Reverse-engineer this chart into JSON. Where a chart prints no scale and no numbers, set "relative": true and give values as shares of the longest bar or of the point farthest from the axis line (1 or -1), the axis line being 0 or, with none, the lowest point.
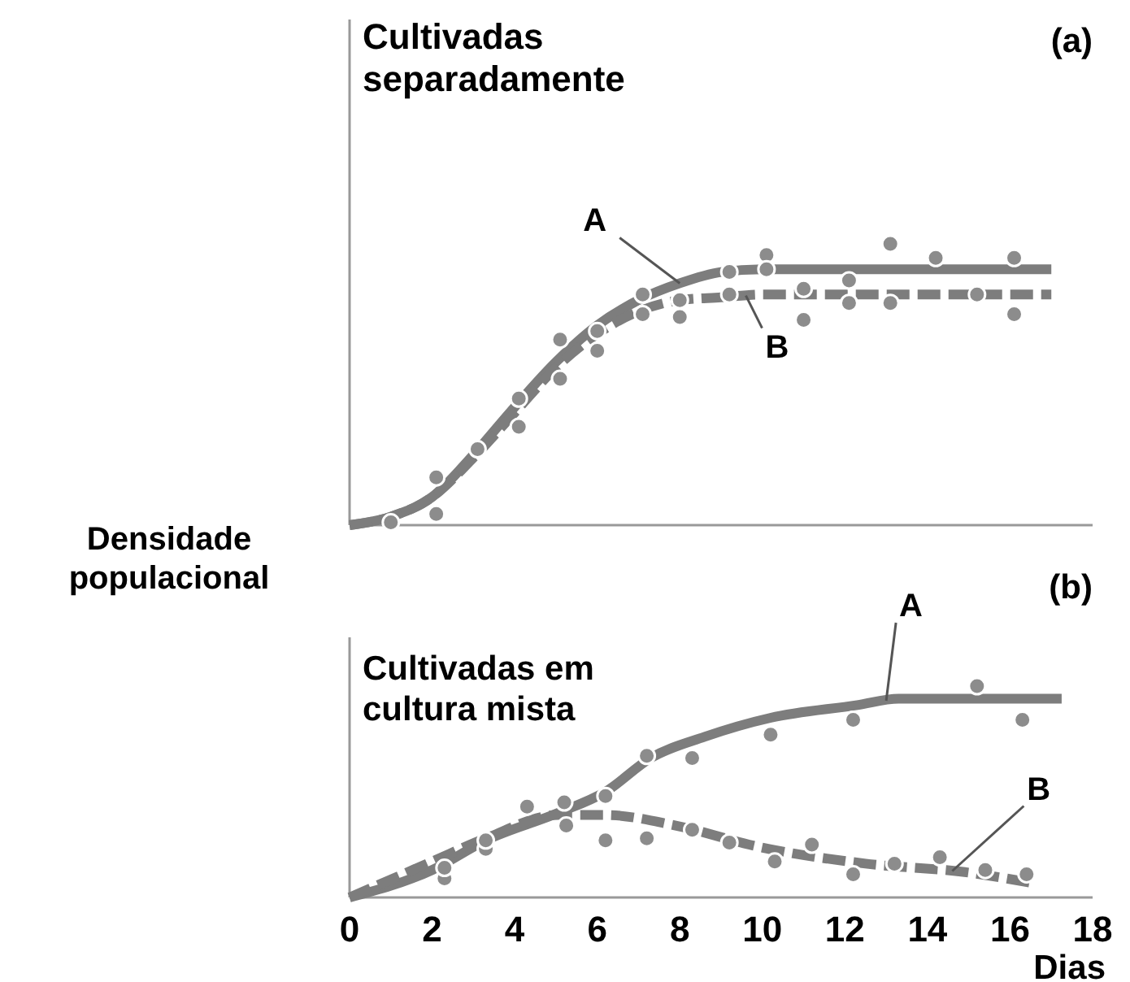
{
  "chart_data": [
    {
      "type": "line",
      "title": "Cultivadas separadamente",
      "ylabel": "Densidade populacional",
      "annotations": [
        "(a)"
      ],
      "relative": true,
      "xlim": [
        0,
        18
      ],
      "tick_labels": false,
      "series": [
        {
          "name": "A",
          "color": "#7d7d7d",
          "line_style": "solid",
          "x": [
            0,
            1,
            2,
            3,
            4,
            5,
            6,
            7,
            8,
            9,
            10,
            12,
            14,
            17
          ],
          "values": [
            0,
            0.03,
            0.1,
            0.25,
            0.42,
            0.58,
            0.71,
            0.8,
            0.86,
            0.9,
            0.91,
            0.91,
            0.91,
            0.91
          ]
        },
        {
          "name": "B",
          "color": "#7d7d7d",
          "line_style": "dashed",
          "x": [
            0,
            1,
            2,
            3,
            4,
            5,
            6,
            7,
            8,
            9,
            10,
            12,
            14,
            17
          ],
          "values": [
            0,
            0.03,
            0.1,
            0.24,
            0.4,
            0.56,
            0.68,
            0.76,
            0.8,
            0.81,
            0.82,
            0.82,
            0.82,
            0.82
          ]
        },
        {
          "type": "scatter",
          "color": "#8c8c8c",
          "marker": "circle",
          "x": [
            1,
            2.1,
            2.1,
            3.1,
            4.1,
            4.1,
            5.1,
            5.1,
            6,
            6,
            7.1,
            7.1,
            8,
            8,
            9.2,
            9.2,
            10.1,
            10.1,
            11,
            11,
            12.1,
            12.1,
            13.1,
            13.1,
            14.2,
            15.2,
            16.1,
            16.1
          ],
          "values": [
            0.01,
            0.17,
            0.04,
            0.27,
            0.45,
            0.35,
            0.66,
            0.52,
            0.62,
            0.69,
            0.75,
            0.82,
            0.8,
            0.74,
            0.9,
            0.82,
            0.96,
            0.91,
            0.84,
            0.73,
            0.87,
            0.79,
            1,
            0.79,
            0.95,
            0.82,
            0.95,
            0.75
          ]
        }
      ]
    },
    {
      "type": "line",
      "title": "Cultivadas em cultura mista",
      "xlabel": "Dias",
      "annotations": [
        "(b)"
      ],
      "relative": true,
      "xlim": [
        0,
        18
      ],
      "xticks": [
        0,
        2,
        4,
        6,
        8,
        10,
        12,
        14,
        16,
        18
      ],
      "tick_labels": "x",
      "series": [
        {
          "name": "A",
          "color": "#7d7d7d",
          "line_style": "solid",
          "x": [
            0,
            2,
            3.3,
            5.05,
            6.2,
            7.3,
            8.6,
            10.2,
            12.3,
            13.3,
            17.25
          ],
          "values": [
            0,
            0.13,
            0.27,
            0.4,
            0.5,
            0.66,
            0.76,
            0.85,
            0.91,
            0.94,
            0.94
          ]
        },
        {
          "name": "B",
          "color": "#7d7d7d",
          "line_style": "dashed",
          "x": [
            0,
            2,
            3.3,
            5.05,
            6.2,
            7.9,
            9.9,
            12.5,
            14.9,
            16.5
          ],
          "values": [
            0,
            0.17,
            0.28,
            0.39,
            0.39,
            0.34,
            0.24,
            0.16,
            0.12,
            0.07
          ]
        },
        {
          "type": "scatter",
          "color": "#8c8c8c",
          "marker": "circle",
          "x": [
            2.3,
            2.3,
            3.3,
            3.3,
            4.3,
            5.2,
            5.25,
            6.2,
            6.2,
            7.2,
            7.2,
            8.3,
            8.3,
            9.2,
            10.2,
            10.3,
            11.2,
            12.2,
            12.2,
            13.2,
            14.3,
            15.2,
            15.4,
            16.3,
            16.4
          ],
          "values": [
            0.09,
            0.14,
            0.23,
            0.27,
            0.43,
            0.45,
            0.34,
            0.48,
            0.27,
            0.67,
            0.28,
            0.66,
            0.32,
            0.26,
            0.77,
            0.17,
            0.25,
            0.84,
            0.11,
            0.16,
            0.19,
            1,
            0.13,
            0.84,
            0.11
          ]
        }
      ]
    }
  ]
}
